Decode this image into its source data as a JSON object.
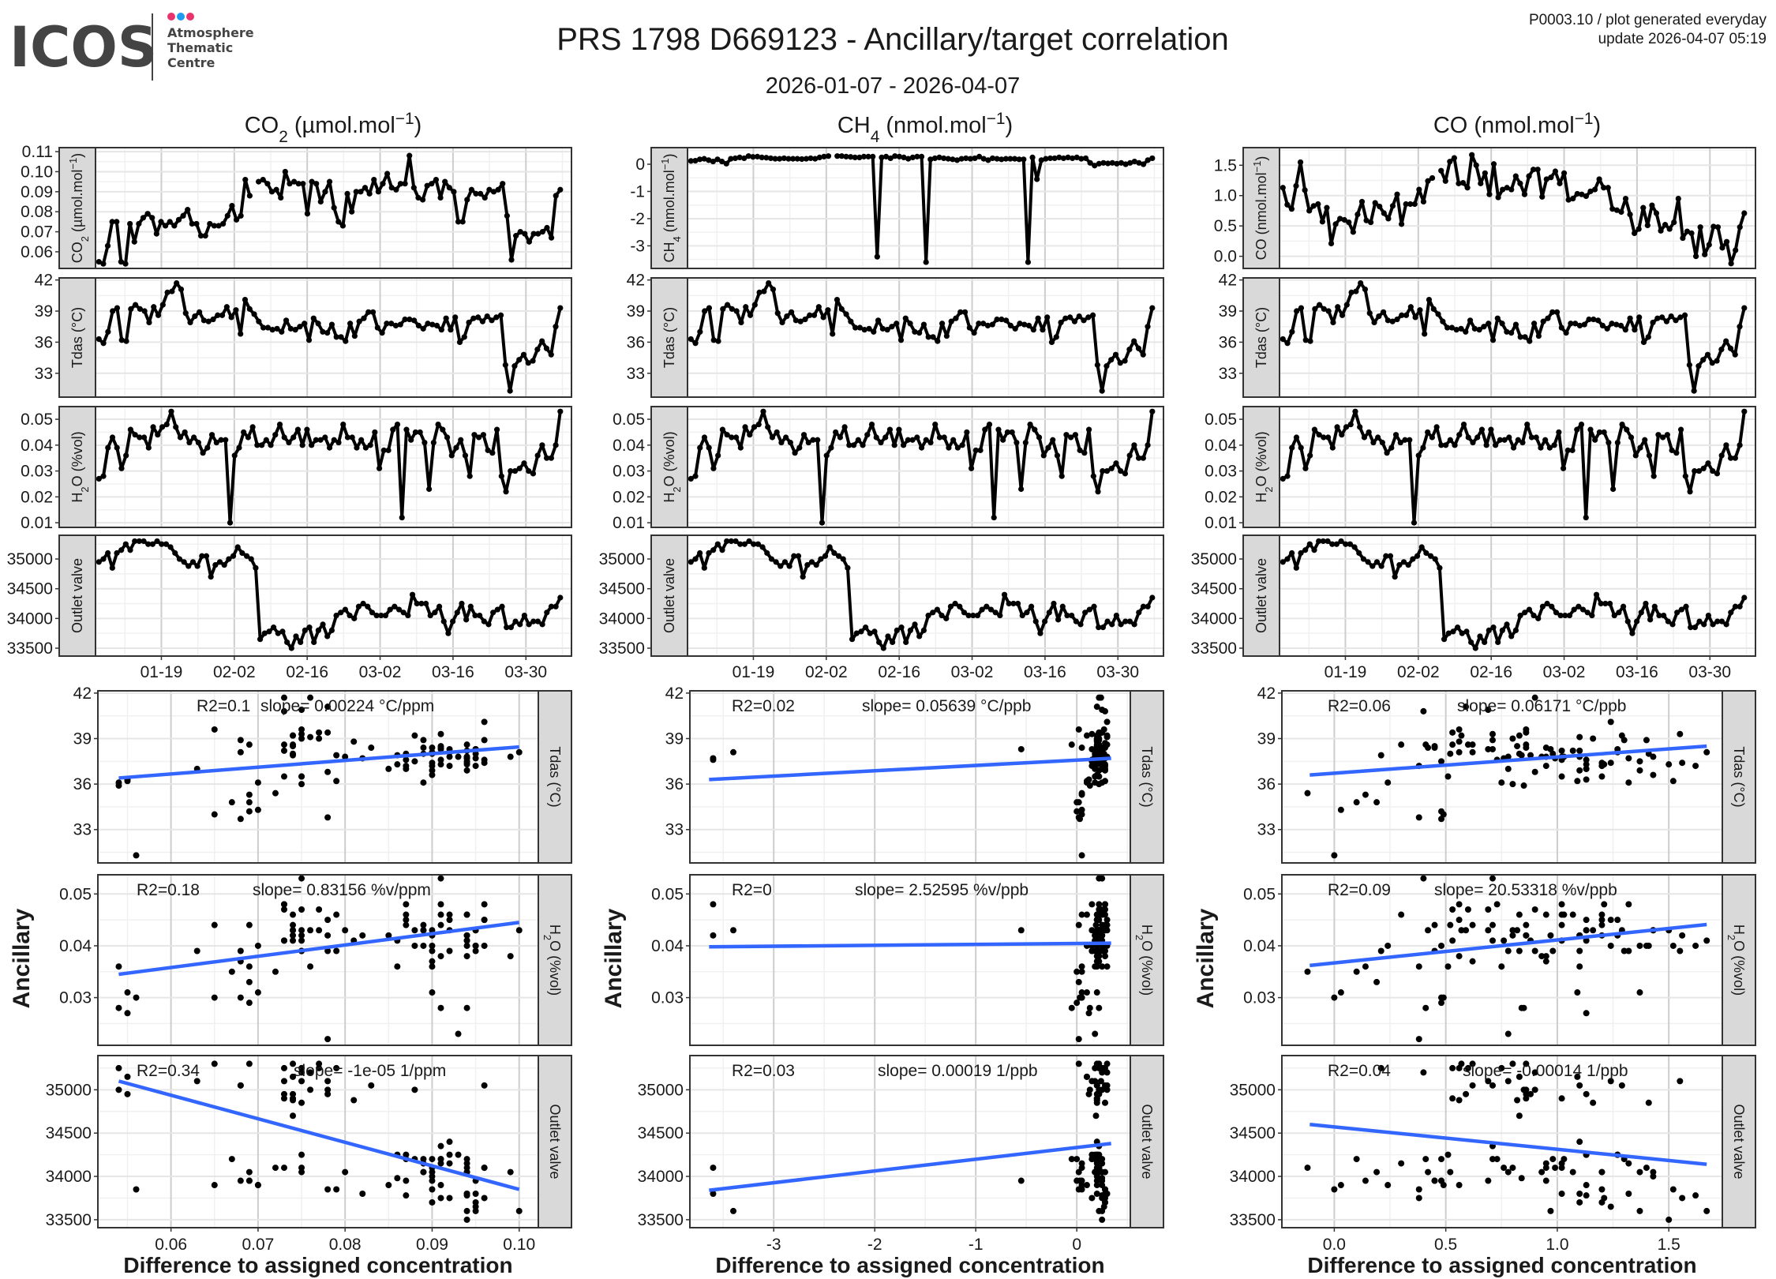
{
  "header": {
    "logo_text": "ICOS",
    "logo_sub": [
      "Atmosphere",
      "Thematic",
      "Centre"
    ],
    "logo_dot_colors": [
      "#e8336d",
      "#1e9bf0",
      "#e8336d"
    ],
    "title": "PRS 1798 D669123 - Ancillary/target correlation",
    "subtitle": "2026-01-07 - 2026-04-07",
    "meta_line1": "P0003.10 / plot generated everyday",
    "meta_line2": "update  2026-04-07 05:19"
  },
  "colors": {
    "line": "#000000",
    "point": "#000000",
    "fit": "#3366ff",
    "strip": "#d9d9d9",
    "border": "#333333"
  },
  "chart_data": {
    "type": "line",
    "ts_x_ticks": [
      "01-19",
      "02-02",
      "02-16",
      "03-02",
      "03-16",
      "03-30"
    ],
    "y_axis_title": "Ancillary",
    "x_axis_title": "Difference to assigned concentration",
    "ancillary": {
      "tdas": {
        "label": [
          {
            "t": "Tdas (°C)"
          }
        ],
        "ylim": [
          30.7,
          42.2
        ],
        "ticks": [
          33,
          36,
          39,
          42
        ],
        "tick_labels": [
          "33",
          "36",
          "39",
          "42"
        ],
        "scatter_ylim": [
          30.8,
          42.15
        ],
        "values": [
          36.3,
          35.9,
          37,
          39,
          39.3,
          36.2,
          36.1,
          39.2,
          39.6,
          39.2,
          39,
          37.9,
          39.4,
          38.6,
          39.6,
          40.8,
          40.9,
          41.7,
          41.1,
          38.8,
          37.9,
          38.5,
          38.9,
          38.1,
          38,
          38.2,
          38.6,
          38.6,
          39.4,
          38.4,
          39.1,
          36.8,
          40.1,
          39.2,
          38.7,
          38.0,
          37.4,
          37.4,
          37.2,
          37.3,
          37.0,
          38.1,
          37.3,
          37.2,
          37.5,
          37.8,
          36.2,
          38.3,
          37.8,
          37.0,
          36.9,
          37.7,
          36.5,
          36.5,
          36.1,
          37.8,
          36.6,
          38.0,
          38.3,
          38.9,
          38.9,
          37.4,
          36.9,
          37.8,
          37.8,
          37.6,
          37.7,
          38.2,
          38.2,
          38.1,
          37.6,
          37.3,
          37.8,
          37.7,
          37.6,
          37.2,
          38.3,
          37.2,
          38.4,
          36.0,
          36.5,
          37.9,
          38.3,
          38.4,
          38.0,
          38.5,
          38.1,
          38.4,
          38.6,
          33.8,
          31.3,
          33.7,
          34.3,
          34.8,
          34.0,
          34.2,
          35.3,
          36.1,
          35.4,
          34.8,
          37.5,
          39.3
        ]
      },
      "h2o": {
        "label": [
          {
            "t": "H"
          },
          {
            "t": "2",
            "s": "sub"
          },
          {
            "t": "O (%vol)"
          }
        ],
        "ylim": [
          0.0082,
          0.0549
        ],
        "ticks": [
          0.01,
          0.02,
          0.03,
          0.04,
          0.05
        ],
        "tick_labels": [
          "0.01",
          "0.02",
          "0.03",
          "0.04",
          "0.05"
        ],
        "scatter_ylim": [
          0.0208,
          0.0537
        ],
        "scatter_ticks": [
          0.03,
          0.04,
          0.05
        ],
        "scatter_tick_labels": [
          "0.03",
          "0.04",
          "0.05"
        ],
        "values": [
          0.027,
          0.028,
          0.039,
          0.043,
          0.039,
          0.031,
          0.036,
          0.046,
          0.044,
          0.043,
          0.043,
          0.039,
          0.047,
          0.044,
          0.047,
          0.048,
          0.053,
          0.047,
          0.043,
          0.045,
          0.041,
          0.043,
          0.041,
          0.037,
          0.039,
          0.044,
          0.041,
          0.042,
          0.042,
          0.01,
          0.036,
          0.039,
          0.045,
          0.043,
          0.047,
          0.04,
          0.04,
          0.042,
          0.04,
          0.044,
          0.048,
          0.043,
          0.041,
          0.043,
          0.046,
          0.04,
          0.046,
          0.04,
          0.042,
          0.042,
          0.043,
          0.039,
          0.042,
          0.041,
          0.048,
          0.043,
          0.043,
          0.039,
          0.042,
          0.039,
          0.04,
          0.045,
          0.031,
          0.038,
          0.038,
          0.046,
          0.048,
          0.012,
          0.046,
          0.042,
          0.045,
          0.045,
          0.041,
          0.023,
          0.041,
          0.048,
          0.046,
          0.043,
          0.036,
          0.039,
          0.042,
          0.036,
          0.028,
          0.044,
          0.043,
          0.044,
          0.038,
          0.037,
          0.046,
          0.028,
          0.022,
          0.03,
          0.03,
          0.031,
          0.033,
          0.03,
          0.029,
          0.036,
          0.04,
          0.035,
          0.035,
          0.04,
          0.053
        ]
      },
      "outlet": {
        "label": [
          {
            "t": "Outlet valve"
          }
        ],
        "ylim": [
          33367,
          35399
        ],
        "ticks": [
          33500,
          34000,
          34500,
          35000
        ],
        "tick_labels": [
          "33500",
          "34000",
          "34500",
          "35000"
        ],
        "scatter_ylim": [
          33408,
          35395
        ],
        "values": [
          34950,
          35000,
          35100,
          34850,
          35100,
          35150,
          35250,
          35150,
          35300,
          35300,
          35300,
          35250,
          35250,
          35300,
          35250,
          35250,
          35200,
          35100,
          35000,
          34950,
          34880,
          34950,
          34880,
          35050,
          35050,
          34700,
          34900,
          34950,
          34900,
          35000,
          35050,
          35200,
          35100,
          35050,
          35000,
          34850,
          33650,
          33750,
          33780,
          33850,
          33750,
          33780,
          33600,
          33500,
          33700,
          33600,
          33800,
          33850,
          33600,
          33800,
          33900,
          33700,
          33800,
          34050,
          34100,
          34150,
          34050,
          34000,
          34200,
          34250,
          34200,
          34100,
          34050,
          34050,
          34050,
          34150,
          34200,
          34150,
          34100,
          34050,
          34400,
          34250,
          34250,
          34250,
          34050,
          34100,
          34200,
          33950,
          33750,
          33950,
          34100,
          34250,
          33980,
          34200,
          34050,
          34050,
          33950,
          33900,
          34100,
          34150,
          34200,
          33850,
          33850,
          33950,
          33900,
          34050,
          33900,
          33950,
          33950,
          33900,
          34100,
          34200,
          34200,
          34350
        ]
      }
    },
    "columns": [
      {
        "title": [
          {
            "t": "CO"
          },
          {
            "t": "2",
            "s": "sub"
          },
          {
            "t": " (µmol.mol"
          },
          {
            "t": "−1",
            "s": "sup"
          },
          {
            "t": ")"
          }
        ],
        "target_label": [
          {
            "t": "CO"
          },
          {
            "t": "2",
            "s": "sub"
          },
          {
            "t": " (µmol.mol"
          },
          {
            "t": "−1",
            "s": "sup"
          },
          {
            "t": ")"
          }
        ],
        "ylim": [
          0.0517,
          0.112
        ],
        "ticks": [
          0.06,
          0.07,
          0.08,
          0.09,
          0.1,
          0.11
        ],
        "tick_labels": [
          "0.06",
          "0.07",
          "0.08",
          "0.09",
          "0.10",
          "0.11"
        ],
        "values": [
          0.055,
          0.054,
          0.063,
          0.075,
          0.075,
          0.055,
          0.054,
          0.074,
          0.065,
          0.074,
          0.077,
          0.079,
          0.077,
          0.069,
          0.075,
          0.073,
          0.075,
          0.073,
          0.076,
          0.078,
          0.081,
          0.074,
          0.074,
          0.068,
          0.068,
          0.074,
          0.073,
          0.073,
          0.074,
          0.078,
          0.083,
          0.076,
          0.078,
          0.096,
          0.088,
          null,
          0.095,
          0.096,
          0.094,
          0.09,
          0.091,
          0.087,
          0.1,
          0.094,
          0.095,
          0.094,
          0.094,
          0.079,
          0.095,
          0.094,
          0.085,
          0.09,
          0.095,
          0.082,
          0.075,
          0.073,
          0.089,
          0.08,
          0.09,
          0.09,
          0.092,
          0.089,
          0.096,
          0.09,
          0.094,
          0.099,
          0.092,
          0.091,
          0.094,
          0.094,
          0.108,
          0.092,
          0.087,
          0.086,
          0.093,
          0.094,
          0.096,
          0.087,
          0.095,
          0.092,
          0.09,
          0.075,
          0.075,
          0.086,
          0.091,
          0.089,
          0.089,
          0.087,
          0.091,
          0.09,
          0.091,
          0.094,
          0.078,
          0.056,
          0.068,
          0.07,
          0.069,
          0.065,
          0.069,
          0.069,
          0.07,
          0.072,
          0.067,
          0.088,
          0.091
        ],
        "scatter": {
          "xlim": [
            0.0516,
            0.1022
          ],
          "xticks": [
            0.06,
            0.07,
            0.08,
            0.09,
            0.1
          ],
          "xtick_labels": [
            "0.06",
            "0.07",
            "0.08",
            "0.09",
            "0.10"
          ],
          "panels": [
            {
              "r2": "R2=0.1",
              "slope": "slope= 0.00224 °C/ppm",
              "fit": {
                "x": [
                  0.054,
                  0.1
                ],
                "y": [
                  36.4,
                  38.45
                ]
              }
            },
            {
              "r2": "R2=0.18",
              "slope": "slope= 0.83156 %v/ppm",
              "fit": {
                "x": [
                  0.054,
                  0.1
                ],
                "y": [
                  0.0345,
                  0.0445
                ]
              }
            },
            {
              "r2": "R2=0.34",
              "slope": "slope= -1e-05 1/ppm",
              "fit": {
                "x": [
                  0.054,
                  0.1
                ],
                "y": [
                  35100,
                  33850
                ]
              }
            }
          ]
        }
      },
      {
        "title": [
          {
            "t": "CH"
          },
          {
            "t": "4",
            "s": "sub"
          },
          {
            "t": " (nmol.mol"
          },
          {
            "t": "−1",
            "s": "sup"
          },
          {
            "t": ")"
          }
        ],
        "target_label": [
          {
            "t": "CH"
          },
          {
            "t": "4",
            "s": "sub"
          },
          {
            "t": " (nmol.mol"
          },
          {
            "t": "−1",
            "s": "sup"
          },
          {
            "t": ")"
          }
        ],
        "ylim": [
          -3.83,
          0.61
        ],
        "ticks": [
          -3,
          -2,
          -1,
          0
        ],
        "tick_labels": [
          "-3",
          "-2",
          "-1",
          "0"
        ],
        "values": [
          0.12,
          0.13,
          0.18,
          0.2,
          0.15,
          0.1,
          0.18,
          0.1,
          0.02,
          0.2,
          0.22,
          0.25,
          0.22,
          0.3,
          0.27,
          0.28,
          0.25,
          0.24,
          0.22,
          0.2,
          0.2,
          0.22,
          0.2,
          0.2,
          0.2,
          0.19,
          0.2,
          0.22,
          0.2,
          0.25,
          0.28,
          0.3,
          null,
          0.3,
          0.3,
          0.28,
          0.27,
          0.25,
          0.25,
          0.28,
          0.28,
          0.28,
          -3.4,
          0.25,
          0.28,
          0.22,
          0.3,
          0.28,
          0.25,
          0.2,
          0.25,
          0.28,
          0.28,
          -3.6,
          0.18,
          0.22,
          0.25,
          0.22,
          0.2,
          0.18,
          0.15,
          0.2,
          0.22,
          0.2,
          0.22,
          0.28,
          0.2,
          0.15,
          0.22,
          0.2,
          0.18,
          0.2,
          0.2,
          0.2,
          0.18,
          0.18,
          -3.6,
          0.25,
          -0.55,
          0.15,
          0.2,
          0.22,
          0.22,
          0.25,
          0.22,
          0.25,
          0.22,
          0.25,
          0.2,
          0.22,
          0.05,
          -0.05,
          0.02,
          0.05,
          0.03,
          0.05,
          0.02,
          0.05,
          0.0,
          0.05,
          0.1,
          0.05,
          0.0,
          0.15,
          0.22
        ],
        "scatter": {
          "xlim": [
            -3.83,
            0.53
          ],
          "xticks": [
            -3,
            -2,
            -1,
            0
          ],
          "xtick_labels": [
            "-3",
            "-2",
            "-1",
            "0"
          ],
          "panels": [
            {
              "r2": "R2=0.02",
              "slope": "slope= 0.05639 °C/ppb",
              "fit": {
                "x": [
                  -3.64,
                  0.34
                ],
                "y": [
                  36.3,
                  37.7
                ]
              }
            },
            {
              "r2": "R2=0",
              "slope": "slope= 2.52595 %v/ppb",
              "fit": {
                "x": [
                  -3.64,
                  0.34
                ],
                "y": [
                  0.0398,
                  0.0405
                ]
              }
            },
            {
              "r2": "R2=0.03",
              "slope": "slope= 0.00019 1/ppb",
              "fit": {
                "x": [
                  -3.64,
                  0.34
                ],
                "y": [
                  33840,
                  34380
                ]
              }
            }
          ]
        }
      },
      {
        "title": [
          {
            "t": "CO (nmol.mol"
          },
          {
            "t": "−1",
            "s": "sup"
          },
          {
            "t": ")"
          }
        ],
        "target_label": [
          {
            "t": "CO (nmol.mol"
          },
          {
            "t": "−1",
            "s": "sup"
          },
          {
            "t": ")"
          }
        ],
        "ylim": [
          -0.2,
          1.79
        ],
        "ticks": [
          0,
          0.5,
          1,
          1.5
        ],
        "tick_labels": [
          "0.0",
          "0.5",
          "1.0",
          "1.5"
        ],
        "values": [
          1.13,
          0.85,
          0.78,
          1.16,
          1.55,
          1.09,
          0.75,
          0.83,
          0.86,
          0.57,
          0.8,
          0.21,
          0.53,
          0.62,
          0.6,
          0.56,
          0.4,
          0.69,
          0.9,
          0.59,
          0.56,
          0.88,
          0.82,
          0.71,
          0.62,
          0.83,
          1.02,
          0.53,
          0.86,
          0.86,
          0.86,
          1.1,
          0.9,
          1.24,
          1.29,
          null,
          1.41,
          1.24,
          1.56,
          1.62,
          1.2,
          1.21,
          1.13,
          1.67,
          1.5,
          1.2,
          1.37,
          1.02,
          1.52,
          0.97,
          1.1,
          1.13,
          1.1,
          1.32,
          1.2,
          1.02,
          1.32,
          1.43,
          1.43,
          0.98,
          1.27,
          1.3,
          1.4,
          1.2,
          1.37,
          0.93,
          0.95,
          1.03,
          1.02,
          0.99,
          1.07,
          1.1,
          1.27,
          1.13,
          1.13,
          0.78,
          0.76,
          0.73,
          0.95,
          0.69,
          0.38,
          0.45,
          0.8,
          0.51,
          0.84,
          0.71,
          0.42,
          0.52,
          0.45,
          0.56,
          0.95,
          0.3,
          0.41,
          0.38,
          0.0,
          0.48,
          0.03,
          0.19,
          0.49,
          0.48,
          0.14,
          0.24,
          -0.12,
          0.1,
          0.48,
          0.71
        ],
        "scatter": {
          "xlim": [
            -0.235,
            1.74
          ],
          "xticks": [
            0,
            0.5,
            1,
            1.5
          ],
          "xtick_labels": [
            "0.0",
            "0.5",
            "1.0",
            "1.5"
          ],
          "panels": [
            {
              "r2": "R2=0.06",
              "slope": "slope= 0.06171 °C/ppb",
              "fit": {
                "x": [
                  -0.11,
                  1.67
                ],
                "y": [
                  36.6,
                  38.5
                ]
              }
            },
            {
              "r2": "R2=0.09",
              "slope": "slope= 20.53318 %v/ppb",
              "fit": {
                "x": [
                  -0.11,
                  1.67
                ],
                "y": [
                  0.0362,
                  0.0441
                ]
              }
            },
            {
              "r2": "R2=0.04",
              "slope": "slope= -0.00014 1/ppb",
              "fit": {
                "x": [
                  -0.11,
                  1.67
                ],
                "y": [
                  34600,
                  34140
                ]
              }
            }
          ]
        }
      }
    ]
  }
}
